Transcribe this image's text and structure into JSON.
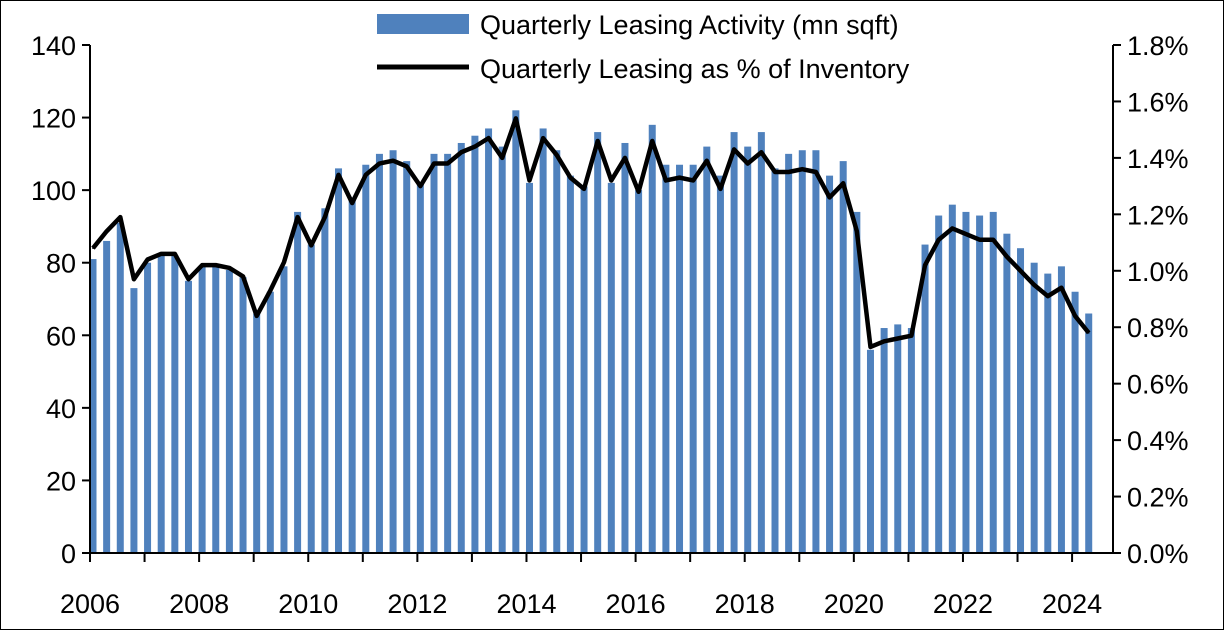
{
  "chart_data": {
    "type": "bar",
    "title": "",
    "xlabel": "",
    "ylabel": "",
    "x_tick_labels": [
      "2006",
      "2008",
      "2010",
      "2012",
      "2014",
      "2016",
      "2018",
      "2020",
      "2022",
      "2024"
    ],
    "y_left_tick_labels": [
      "0",
      "20",
      "40",
      "60",
      "80",
      "100",
      "120",
      "140"
    ],
    "y_right_tick_labels": [
      "0.0%",
      "0.2%",
      "0.4%",
      "0.6%",
      "0.8%",
      "1.0%",
      "1.2%",
      "1.4%",
      "1.6%",
      "1.8%"
    ],
    "ylim_left": [
      0,
      140
    ],
    "ylim_right": [
      0,
      1.8
    ],
    "xlim": [
      2006.0,
      2024.75
    ],
    "grid": false,
    "legend_position": "top-center",
    "colors": {
      "bars": "#4f81bd",
      "line": "#000000",
      "axis": "#000000"
    },
    "x": [
      2006.0,
      2006.25,
      2006.5,
      2006.75,
      2007.0,
      2007.25,
      2007.5,
      2007.75,
      2008.0,
      2008.25,
      2008.5,
      2008.75,
      2009.0,
      2009.25,
      2009.5,
      2009.75,
      2010.0,
      2010.25,
      2010.5,
      2010.75,
      2011.0,
      2011.25,
      2011.5,
      2011.75,
      2012.0,
      2012.25,
      2012.5,
      2012.75,
      2013.0,
      2013.25,
      2013.5,
      2013.75,
      2014.0,
      2014.25,
      2014.5,
      2014.75,
      2015.0,
      2015.25,
      2015.5,
      2015.75,
      2016.0,
      2016.25,
      2016.5,
      2016.75,
      2017.0,
      2017.25,
      2017.5,
      2017.75,
      2018.0,
      2018.25,
      2018.5,
      2018.75,
      2019.0,
      2019.25,
      2019.5,
      2019.75,
      2020.0,
      2020.25,
      2020.5,
      2020.75,
      2021.0,
      2021.25,
      2021.5,
      2021.75,
      2022.0,
      2022.25,
      2022.5,
      2022.75,
      2023.0,
      2023.25,
      2023.5,
      2023.75,
      2024.0,
      2024.25
    ],
    "series": [
      {
        "name": "Quarterly Leasing Activity (mn sqft)",
        "type": "bar",
        "axis": "left",
        "values": [
          81,
          86,
          91,
          73,
          80,
          82,
          82,
          75,
          79,
          79,
          78,
          76,
          66,
          72,
          79,
          94,
          85,
          95,
          106,
          98,
          107,
          110,
          111,
          108,
          102,
          110,
          110,
          113,
          115,
          117,
          112,
          122,
          102,
          117,
          111,
          104,
          101,
          116,
          102,
          113,
          100,
          118,
          107,
          107,
          107,
          112,
          104,
          116,
          112,
          116,
          106,
          110,
          111,
          111,
          104,
          108,
          94,
          56,
          62,
          63,
          62,
          85,
          93,
          96,
          94,
          93,
          94,
          88,
          84,
          80,
          77,
          79,
          72,
          66
        ]
      },
      {
        "name": "Quarterly Leasing as % of Inventory",
        "type": "line",
        "axis": "right",
        "values": [
          1.08,
          1.14,
          1.19,
          0.97,
          1.04,
          1.06,
          1.06,
          0.97,
          1.02,
          1.02,
          1.01,
          0.98,
          0.84,
          0.93,
          1.03,
          1.19,
          1.09,
          1.19,
          1.34,
          1.24,
          1.34,
          1.38,
          1.39,
          1.37,
          1.3,
          1.38,
          1.38,
          1.42,
          1.44,
          1.47,
          1.4,
          1.54,
          1.32,
          1.47,
          1.41,
          1.33,
          1.29,
          1.46,
          1.32,
          1.4,
          1.28,
          1.46,
          1.32,
          1.33,
          1.32,
          1.39,
          1.29,
          1.43,
          1.38,
          1.42,
          1.35,
          1.35,
          1.36,
          1.35,
          1.26,
          1.31,
          1.14,
          0.73,
          0.75,
          0.76,
          0.77,
          1.02,
          1.11,
          1.15,
          1.13,
          1.11,
          1.11,
          1.05,
          1.0,
          0.95,
          0.91,
          0.94,
          0.84,
          0.78
        ]
      }
    ]
  }
}
